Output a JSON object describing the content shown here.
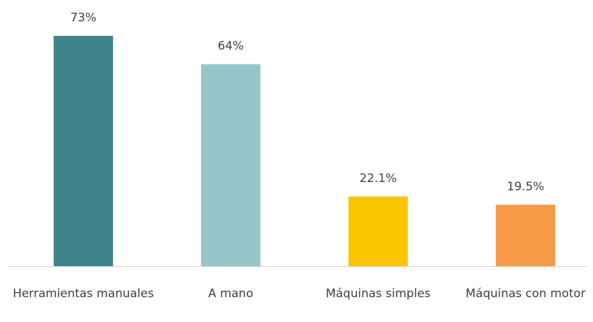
{
  "chart_data": {
    "type": "bar",
    "categories": [
      "Herramientas manuales",
      "A mano",
      "Máquinas simples",
      "Máquinas con motor"
    ],
    "values": [
      73,
      64,
      22.1,
      19.5
    ],
    "value_labels": [
      "73%",
      "64%",
      "22.1%",
      "19.5%"
    ],
    "colors": [
      "#3f828a",
      "#97c6ca",
      "#f9c500",
      "#f79a45"
    ]
  }
}
